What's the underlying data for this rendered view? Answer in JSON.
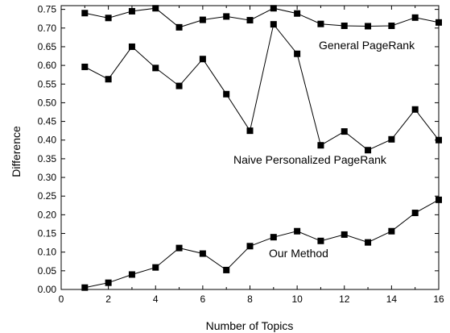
{
  "chart_data": {
    "type": "line",
    "xlabel": "Number of Topics",
    "ylabel": "Difference",
    "xlim": [
      0,
      16
    ],
    "ylim": [
      0,
      0.76
    ],
    "grid": false,
    "legend": "none",
    "x_ticks": [
      "0",
      "2",
      "4",
      "6",
      "8",
      "10",
      "12",
      "14",
      "16"
    ],
    "y_ticks": [
      "0.00",
      "0.05",
      "0.10",
      "0.15",
      "0.20",
      "0.25",
      "0.30",
      "0.35",
      "0.40",
      "0.45",
      "0.50",
      "0.55",
      "0.60",
      "0.65",
      "0.70",
      "0.75"
    ],
    "x": [
      1,
      2,
      3,
      4,
      5,
      6,
      7,
      8,
      9,
      10,
      11,
      12,
      13,
      14,
      15,
      16
    ],
    "series": [
      {
        "name": "General PageRank",
        "values": [
          0.74,
          0.727,
          0.745,
          0.753,
          0.702,
          0.722,
          0.731,
          0.721,
          0.753,
          0.739,
          0.711,
          0.706,
          0.705,
          0.706,
          0.728,
          0.715
        ]
      },
      {
        "name": "Naive Personalized PageRank",
        "values": [
          0.596,
          0.563,
          0.65,
          0.593,
          0.545,
          0.617,
          0.523,
          0.425,
          0.71,
          0.631,
          0.386,
          0.423,
          0.373,
          0.402,
          0.482,
          0.4
        ]
      },
      {
        "name": "Our Method",
        "values": [
          0.005,
          0.018,
          0.04,
          0.059,
          0.111,
          0.096,
          0.052,
          0.116,
          0.14,
          0.156,
          0.13,
          0.147,
          0.126,
          0.156,
          0.205,
          0.24
        ]
      }
    ],
    "marker": "square",
    "line_color": "#000000"
  }
}
